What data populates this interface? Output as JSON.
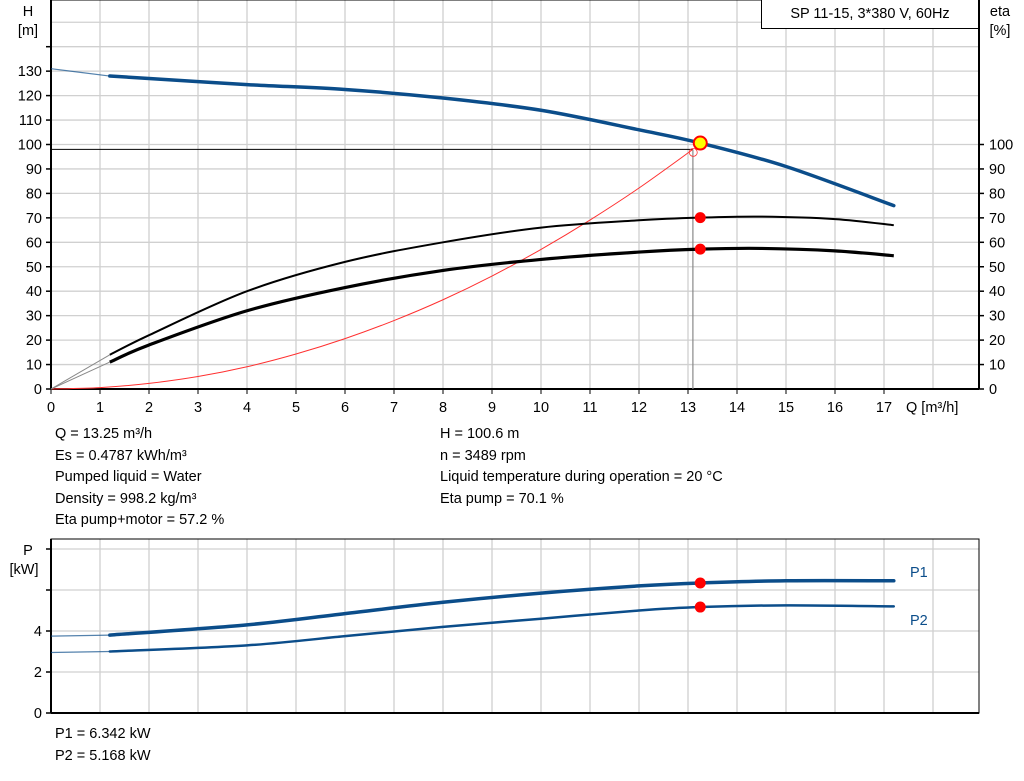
{
  "chart_data": [
    {
      "type": "line",
      "title": "SP 11-15, 3*380 V, 60Hz",
      "xlabel": "Q [m³/h]",
      "ylabel_left": [
        "H",
        "[m]"
      ],
      "ylabel_right": [
        "eta",
        "[%]"
      ],
      "xlim": [
        0,
        18.8
      ],
      "ylim_left": [
        0,
        160
      ],
      "ylim_right": [
        0,
        160
      ],
      "x_ticks": [
        0,
        1,
        2,
        3,
        4,
        5,
        6,
        7,
        8,
        9,
        10,
        11,
        12,
        13,
        14,
        15,
        16,
        17
      ],
      "y_ticks_left": [
        0,
        10,
        20,
        30,
        40,
        50,
        60,
        70,
        80,
        90,
        100,
        110,
        120,
        130
      ],
      "y_ticks_right": [
        0,
        10,
        20,
        30,
        40,
        50,
        60,
        70,
        80,
        90,
        100
      ],
      "grid": true,
      "series": [
        {
          "key": "H",
          "axis": "left",
          "color": "#0b4d8a",
          "x": [
            0,
            1.2,
            2,
            4,
            6,
            8,
            10,
            12,
            13.25,
            15,
            17.2
          ],
          "y": [
            131,
            128,
            127,
            124.5,
            122.5,
            119,
            114,
            106,
            100.6,
            91,
            75
          ]
        },
        {
          "key": "eta_pump",
          "axis": "right",
          "color": "#000000",
          "x": [
            1.2,
            2,
            4,
            6,
            8,
            10,
            12,
            13.25,
            14.5,
            16,
            17.2
          ],
          "y": [
            14,
            22,
            40,
            52,
            60,
            66,
            69,
            70.1,
            70.5,
            69.5,
            67
          ]
        },
        {
          "key": "eta_pump_motor",
          "axis": "right",
          "color": "#000000",
          "x": [
            1.2,
            2,
            4,
            6,
            8,
            10,
            12,
            13.25,
            14.5,
            16,
            17.2
          ],
          "y": [
            11,
            18,
            32,
            41.5,
            48.5,
            53,
            56,
            57.2,
            57.5,
            56.5,
            54.5
          ]
        },
        {
          "key": "system_curve",
          "axis": "left",
          "color": "#ff3030",
          "x": [
            0,
            1,
            2,
            3,
            4,
            5,
            6,
            7,
            8,
            9,
            10,
            11,
            12,
            13.1
          ],
          "y": [
            0,
            0.57,
            2.3,
            5.1,
            9.1,
            14.3,
            20.6,
            28,
            36.5,
            46.2,
            57.1,
            69.1,
            82.2,
            98
          ]
        }
      ],
      "duty_point": {
        "Q": 13.25,
        "H": 100.6,
        "eta_pump": 70.1,
        "eta_pump_motor": 57.2
      },
      "reference_lines": {
        "H": 98,
        "Q": 13.1
      }
    },
    {
      "type": "line",
      "xlabel": "",
      "ylabel": [
        "P",
        "[kW]"
      ],
      "xlim": [
        0,
        18.8
      ],
      "ylim": [
        0,
        8.5
      ],
      "y_ticks": [
        0,
        2,
        4
      ],
      "grid": true,
      "series": [
        {
          "name": "P1",
          "color": "#0b4d8a",
          "x": [
            0,
            1.2,
            4,
            6,
            8,
            10,
            12,
            13.25,
            15,
            17.2
          ],
          "y": [
            3.75,
            3.8,
            4.3,
            4.85,
            5.4,
            5.85,
            6.2,
            6.342,
            6.45,
            6.45
          ]
        },
        {
          "name": "P2",
          "color": "#0b4d8a",
          "x": [
            0,
            1.2,
            4,
            6,
            8,
            10,
            12,
            13.25,
            15,
            17.2
          ],
          "y": [
            2.95,
            3.0,
            3.3,
            3.75,
            4.2,
            4.6,
            5.0,
            5.168,
            5.25,
            5.2
          ]
        }
      ],
      "duty_point": {
        "Q": 13.25,
        "P1": 6.342,
        "P2": 5.168
      }
    }
  ],
  "info_left": [
    "Q = 13.25 m³/h",
    "Es = 0.4787 kWh/m³",
    "Pumped liquid = Water",
    "Density = 998.2 kg/m³",
    "Eta pump+motor = 57.2 %"
  ],
  "info_right": [
    "H = 100.6 m",
    "n = 3489 rpm",
    "Liquid temperature during operation = 20 °C",
    "Eta pump = 70.1 %"
  ],
  "power_info": [
    "P1 = 6.342 kW",
    "P2 = 5.168 kW"
  ],
  "colors": {
    "curve": "#0b4d8a",
    "duty_point": "#ff0000",
    "duty_point_fill": "#ffff00",
    "grid": "#d0d0d0",
    "system_curve": "#ff3030"
  }
}
